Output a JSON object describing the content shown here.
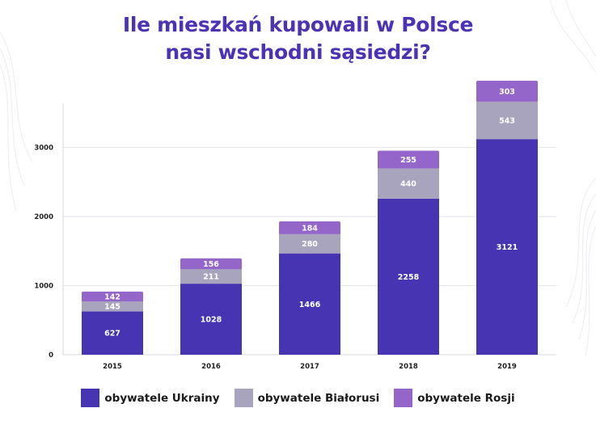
{
  "title": {
    "line1": "Ile mieszkań kupowali w Polsce",
    "line2": "nasi wschodni sąsiedzi?"
  },
  "colors": {
    "title": "#4b33b5",
    "ukraina": "#4734b3",
    "bialorus": "#a9a4bd",
    "rosja": "#9566c9"
  },
  "legend": [
    {
      "name": "obywatele Ukrainy",
      "color": "#4734b3"
    },
    {
      "name": "obywatele Białorusi",
      "color": "#a9a4bd"
    },
    {
      "name": "obywatele Rosji",
      "color": "#9566c9"
    }
  ],
  "chart_data": {
    "type": "bar",
    "stacked": true,
    "categories": [
      "2015",
      "2016",
      "2017",
      "2018",
      "2019"
    ],
    "series": [
      {
        "name": "obywatele Ukrainy",
        "values": [
          627,
          1028,
          1466,
          2258,
          3121
        ]
      },
      {
        "name": "obywatele Białorusi",
        "values": [
          145,
          211,
          280,
          440,
          543
        ]
      },
      {
        "name": "obywatele Rosji",
        "values": [
          142,
          156,
          184,
          255,
          303
        ]
      }
    ],
    "yticks": [
      "0",
      "1000",
      "2000",
      "3000"
    ],
    "ylim": [
      0,
      4000
    ],
    "grid": true,
    "legend_position": "bottom"
  }
}
